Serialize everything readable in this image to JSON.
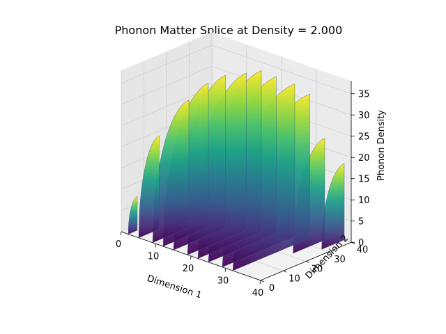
{
  "chart_data": {
    "type": "surface3d",
    "title": "Phonon Matter Splice at Density = 2.000",
    "xlabel": "Dimension 1",
    "ylabel": "Dimension 2",
    "zlabel": "Phonon Density",
    "xlim": [
      0,
      40
    ],
    "ylim": [
      0,
      40
    ],
    "zlim": [
      0,
      38
    ],
    "xticks": [
      "0",
      "10",
      "20",
      "30",
      "40"
    ],
    "yticks": [
      "0",
      "10",
      "20",
      "30",
      "40"
    ],
    "zticks": [
      "0",
      "5",
      "10",
      "15",
      "20",
      "25",
      "30",
      "35"
    ],
    "colormap": "viridis",
    "grid": true,
    "surface": {
      "description_values": "Set of vertical sheets at discrete Dimension 1 positions; each sheet rises from 0 to about 38 along Dimension 2 following a quarter-circle profile.",
      "sheet_x_positions": [
        2,
        5,
        9,
        12,
        15,
        19,
        22,
        25,
        29,
        32,
        35,
        38
      ],
      "sheet_max_height": [
        8,
        22,
        30,
        34,
        36,
        37,
        38,
        37,
        36,
        34,
        24,
        18
      ],
      "sheet_y_extent": [
        [
          0,
          4
        ],
        [
          0,
          9
        ],
        [
          0,
          16
        ],
        [
          0,
          20
        ],
        [
          0,
          23
        ],
        [
          0,
          26
        ],
        [
          0,
          28
        ],
        [
          0,
          30
        ],
        [
          0,
          32
        ],
        [
          0,
          34
        ],
        [
          22,
          36
        ],
        [
          30,
          40
        ]
      ]
    }
  }
}
